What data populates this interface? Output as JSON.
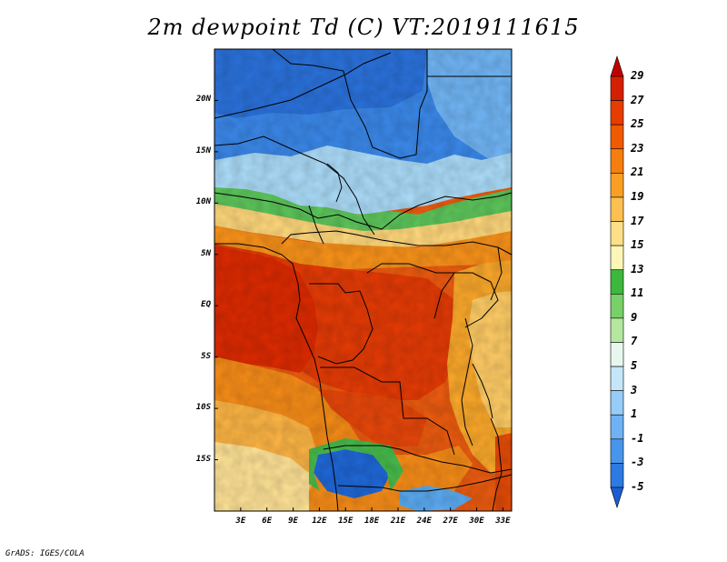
{
  "title": "2m dewpoint Td (C) VT:2019111615",
  "credit": "GrADS: IGES/COLA",
  "map": {
    "lat_labels": [
      {
        "label": "20N",
        "lat": 20
      },
      {
        "label": "15N",
        "lat": 15
      },
      {
        "label": "10N",
        "lat": 10
      },
      {
        "label": "5N",
        "lat": 5
      },
      {
        "label": "EQ",
        "lat": 0
      },
      {
        "label": "5S",
        "lat": -5
      },
      {
        "label": "10S",
        "lat": -10
      },
      {
        "label": "15S",
        "lat": -15
      }
    ],
    "lon_labels": [
      {
        "label": "3E",
        "lon": 3
      },
      {
        "label": "6E",
        "lon": 6
      },
      {
        "label": "9E",
        "lon": 9
      },
      {
        "label": "12E",
        "lon": 12
      },
      {
        "label": "15E",
        "lon": 15
      },
      {
        "label": "18E",
        "lon": 18
      },
      {
        "label": "21E",
        "lon": 21
      },
      {
        "label": "24E",
        "lon": 24
      },
      {
        "label": "27E",
        "lon": 27
      },
      {
        "label": "30E",
        "lon": 30
      },
      {
        "label": "33E",
        "lon": 33
      }
    ],
    "extent": {
      "lon_min": 0,
      "lon_max": 34,
      "lat_min": -20,
      "lat_max": 25
    }
  },
  "colorbar": {
    "labels": [
      "29",
      "27",
      "25",
      "23",
      "21",
      "19",
      "17",
      "15",
      "13",
      "11",
      "9",
      "7",
      "5",
      "3",
      "1",
      "-1",
      "-3",
      "-5"
    ],
    "colors": [
      "#c00000",
      "#d42000",
      "#e63c00",
      "#f05a00",
      "#f57e10",
      "#f9a024",
      "#fbc050",
      "#fcdf86",
      "#fdf6b6",
      "#3cb83c",
      "#78d068",
      "#b4e8a0",
      "#e6f8ee",
      "#c4e6f8",
      "#96cdf8",
      "#6eb2f4",
      "#4896ec",
      "#2c7ae2",
      "#1a5fd0"
    ]
  }
}
